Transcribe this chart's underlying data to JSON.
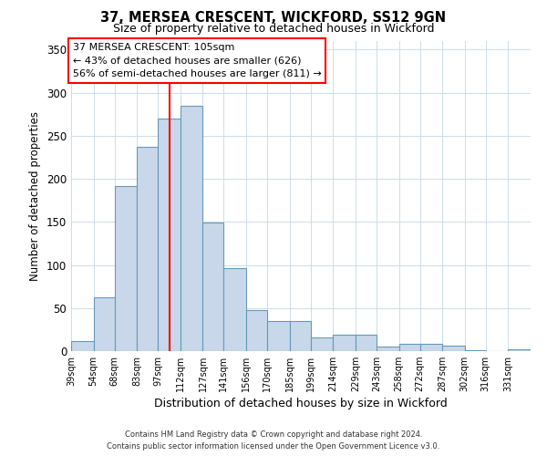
{
  "title": "37, MERSEA CRESCENT, WICKFORD, SS12 9GN",
  "subtitle": "Size of property relative to detached houses in Wickford",
  "xlabel": "Distribution of detached houses by size in Wickford",
  "ylabel": "Number of detached properties",
  "bar_color": "#c8d8ea",
  "bar_edge_color": "#6699bb",
  "bin_labels": [
    "39sqm",
    "54sqm",
    "68sqm",
    "83sqm",
    "97sqm",
    "112sqm",
    "127sqm",
    "141sqm",
    "156sqm",
    "170sqm",
    "185sqm",
    "199sqm",
    "214sqm",
    "229sqm",
    "243sqm",
    "258sqm",
    "272sqm",
    "287sqm",
    "302sqm",
    "316sqm",
    "331sqm"
  ],
  "bin_edges": [
    39,
    54,
    68,
    83,
    97,
    112,
    127,
    141,
    156,
    170,
    185,
    199,
    214,
    229,
    243,
    258,
    272,
    287,
    302,
    316,
    331,
    346
  ],
  "bar_heights": [
    12,
    62,
    192,
    237,
    270,
    285,
    149,
    96,
    48,
    35,
    35,
    16,
    19,
    19,
    5,
    8,
    8,
    6,
    1,
    0,
    2
  ],
  "ylim": [
    0,
    360
  ],
  "yticks": [
    0,
    50,
    100,
    150,
    200,
    250,
    300,
    350
  ],
  "red_line_x": 105,
  "annotation_title": "37 MERSEA CRESCENT: 105sqm",
  "annotation_line1": "← 43% of detached houses are smaller (626)",
  "annotation_line2": "56% of semi-detached houses are larger (811) →",
  "footer_line1": "Contains HM Land Registry data © Crown copyright and database right 2024.",
  "footer_line2": "Contains public sector information licensed under the Open Government Licence v3.0.",
  "bg_color": "#ffffff",
  "grid_color": "#ccdde8"
}
